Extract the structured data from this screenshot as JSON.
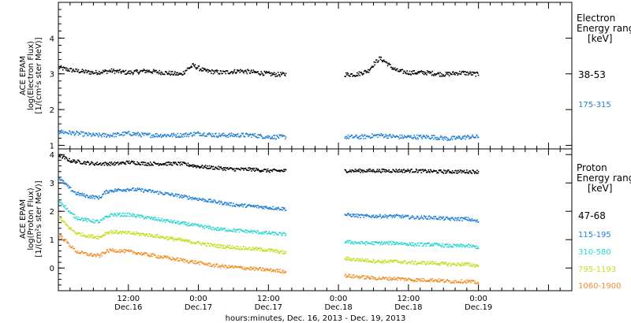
{
  "figure": {
    "xlabel": "hours:minutes, Dec. 16, 2013 - Dec. 19, 2013"
  },
  "colors": {
    "black": "#000000",
    "blue": "#1f7fd6",
    "cyan": "#2ad6d0",
    "yellow_green": "#c6dc1a",
    "orange": "#f0902a"
  },
  "chart_data": [
    {
      "type": "scatter",
      "panel": "electron",
      "ylabel_lines": [
        "ACE EPAM",
        "log(Electron Flux)",
        "[1/(cm²s ster MeV)]"
      ],
      "legend_title": [
        "Electron",
        "Energy ranges",
        "[keV]"
      ],
      "legend_placement": "right",
      "ylim": [
        0.9,
        5.0
      ],
      "yticks": [
        1,
        2,
        3,
        4
      ],
      "xlim_hours": [
        0,
        88
      ],
      "xticks": [
        {
          "h": 12,
          "time": "12:00",
          "date": "Dec.16"
        },
        {
          "h": 24,
          "time": "0:00",
          "date": "Dec.17"
        },
        {
          "h": 36,
          "time": "12:00",
          "date": "Dec.17"
        },
        {
          "h": 48,
          "time": "0:00",
          "date": "Dec.18"
        },
        {
          "h": 60,
          "time": "12:00",
          "date": "Dec.18"
        },
        {
          "h": 72,
          "time": "0:00",
          "date": "Dec.19"
        }
      ],
      "grid": false,
      "series": [
        {
          "name": "38-53",
          "color": "#000000",
          "segments": [
            {
              "x": [
                0,
                1,
                3,
                6,
                9,
                12,
                15,
                18,
                21,
                22,
                23,
                25,
                28,
                31,
                34,
                37,
                39
              ],
              "y": [
                3.2,
                3.15,
                3.1,
                3.05,
                3.1,
                3.05,
                3.1,
                3.05,
                3.0,
                3.15,
                3.25,
                3.1,
                3.05,
                3.1,
                3.05,
                3.0,
                3.0
              ]
            },
            {
              "x": [
                49,
                51,
                52,
                53,
                54,
                55,
                56,
                57,
                58,
                60,
                63,
                66,
                69,
                72
              ],
              "y": [
                3.0,
                3.0,
                3.05,
                3.1,
                3.3,
                3.45,
                3.35,
                3.2,
                3.1,
                3.05,
                3.05,
                3.0,
                3.05,
                3.0
              ]
            }
          ]
        },
        {
          "name": "175-315",
          "color": "#1f7fd6",
          "segments": [
            {
              "x": [
                0,
                3,
                6,
                9,
                12,
                15,
                18,
                21,
                24,
                27,
                30,
                33,
                36,
                39
              ],
              "y": [
                1.4,
                1.35,
                1.3,
                1.3,
                1.35,
                1.3,
                1.3,
                1.3,
                1.35,
                1.3,
                1.3,
                1.3,
                1.25,
                1.25
              ]
            },
            {
              "x": [
                49,
                52,
                55,
                58,
                61,
                64,
                67,
                70,
                72
              ],
              "y": [
                1.25,
                1.25,
                1.3,
                1.25,
                1.25,
                1.25,
                1.2,
                1.25,
                1.25
              ]
            }
          ]
        }
      ]
    },
    {
      "type": "scatter",
      "panel": "proton",
      "ylabel_lines": [
        "ACE EPAM",
        "log(Proton Flux)",
        "[1/(cm²s ster MeV)]"
      ],
      "legend_title": [
        "Proton",
        "Energy ranges",
        "[keV]"
      ],
      "legend_placement": "right",
      "ylim": [
        -0.8,
        4.2
      ],
      "yticks": [
        0,
        1,
        2,
        3,
        4
      ],
      "xlim_hours": [
        0,
        88
      ],
      "xticks": [
        {
          "h": 12,
          "time": "12:00",
          "date": "Dec.16"
        },
        {
          "h": 24,
          "time": "0:00",
          "date": "Dec.17"
        },
        {
          "h": 36,
          "time": "12:00",
          "date": "Dec.17"
        },
        {
          "h": 48,
          "time": "0:00",
          "date": "Dec.18"
        },
        {
          "h": 60,
          "time": "12:00",
          "date": "Dec.18"
        },
        {
          "h": 72,
          "time": "0:00",
          "date": "Dec.19"
        }
      ],
      "grid": false,
      "series": [
        {
          "name": "47-68",
          "color": "#000000",
          "segments": [
            {
              "x": [
                0,
                1,
                2,
                4,
                6,
                8,
                10,
                12,
                15,
                18,
                21,
                24,
                27,
                30,
                33,
                36,
                39
              ],
              "y": [
                4.0,
                3.9,
                3.8,
                3.75,
                3.7,
                3.7,
                3.7,
                3.75,
                3.7,
                3.7,
                3.7,
                3.6,
                3.55,
                3.5,
                3.5,
                3.45,
                3.45
              ]
            },
            {
              "x": [
                49,
                53,
                57,
                61,
                65,
                69,
                72
              ],
              "y": [
                3.45,
                3.45,
                3.45,
                3.45,
                3.42,
                3.42,
                3.42
              ]
            }
          ]
        },
        {
          "name": "115-195",
          "color": "#1f7fd6",
          "segments": [
            {
              "x": [
                0,
                1,
                2,
                3,
                5,
                7,
                8,
                9,
                12,
                15,
                18,
                21,
                24,
                27,
                30,
                33,
                36,
                39
              ],
              "y": [
                3.2,
                3.0,
                2.8,
                2.65,
                2.55,
                2.5,
                2.7,
                2.75,
                2.8,
                2.75,
                2.65,
                2.55,
                2.45,
                2.35,
                2.25,
                2.2,
                2.15,
                2.1
              ]
            },
            {
              "x": [
                49,
                52,
                55,
                58,
                61,
                64,
                67,
                70,
                72
              ],
              "y": [
                1.9,
                1.85,
                1.85,
                1.85,
                1.8,
                1.8,
                1.75,
                1.75,
                1.65
              ]
            }
          ]
        },
        {
          "name": "310-580",
          "color": "#2ad6d0",
          "segments": [
            {
              "x": [
                0,
                1,
                2,
                3,
                5,
                7,
                8,
                9,
                12,
                15,
                18,
                21,
                24,
                27,
                30,
                33,
                36,
                39
              ],
              "y": [
                2.4,
                2.2,
                1.95,
                1.8,
                1.7,
                1.65,
                1.8,
                1.9,
                1.9,
                1.8,
                1.7,
                1.6,
                1.5,
                1.4,
                1.35,
                1.3,
                1.25,
                1.2
              ]
            },
            {
              "x": [
                49,
                52,
                55,
                58,
                61,
                64,
                67,
                70,
                72
              ],
              "y": [
                0.95,
                0.9,
                0.9,
                0.9,
                0.85,
                0.85,
                0.8,
                0.8,
                0.75
              ]
            }
          ]
        },
        {
          "name": "795-1193",
          "color": "#c6dc1a",
          "segments": [
            {
              "x": [
                0,
                1,
                2,
                3,
                5,
                7,
                8,
                9,
                12,
                15,
                18,
                21,
                24,
                27,
                30,
                33,
                36,
                39
              ],
              "y": [
                1.8,
                1.6,
                1.4,
                1.25,
                1.15,
                1.1,
                1.25,
                1.3,
                1.25,
                1.2,
                1.1,
                1.0,
                0.9,
                0.8,
                0.75,
                0.7,
                0.65,
                0.55
              ]
            },
            {
              "x": [
                49,
                52,
                55,
                58,
                61,
                64,
                67,
                70,
                72
              ],
              "y": [
                0.35,
                0.3,
                0.25,
                0.25,
                0.2,
                0.2,
                0.15,
                0.15,
                0.1
              ]
            }
          ]
        },
        {
          "name": "1060-1900",
          "color": "#f0902a",
          "segments": [
            {
              "x": [
                0,
                1,
                2,
                3,
                5,
                7,
                8,
                9,
                12,
                15,
                18,
                21,
                24,
                27,
                30,
                33,
                36,
                39
              ],
              "y": [
                1.2,
                1.0,
                0.8,
                0.6,
                0.5,
                0.45,
                0.6,
                0.65,
                0.6,
                0.5,
                0.4,
                0.3,
                0.2,
                0.1,
                0.05,
                0.0,
                -0.05,
                -0.1
              ]
            },
            {
              "x": [
                49,
                52,
                55,
                58,
                61,
                64,
                67,
                70,
                72
              ],
              "y": [
                -0.25,
                -0.3,
                -0.35,
                -0.35,
                -0.4,
                -0.4,
                -0.45,
                -0.45,
                -0.5
              ]
            }
          ]
        }
      ]
    }
  ]
}
